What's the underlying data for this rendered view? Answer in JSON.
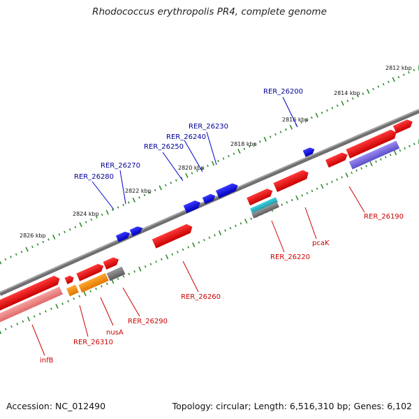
{
  "title": "Rhodococcus erythropolis PR4, complete genome",
  "accession": "Accession: NC_012490",
  "topology": "Topology: circular; Length: 6,516,310 bp; Genes: 6,102",
  "colors": {
    "backbone": "#7f7f7f",
    "ticks": "#2e8b2e",
    "gene_red": "#ee0000",
    "gene_blue": "#0000ee",
    "label_blue": "#000099",
    "label_red": "#cc0000",
    "orange": "#ff8c00",
    "gray": "#666666",
    "teal": "#20b2c0",
    "pink": "#ef8080",
    "purple": "#7b68ee"
  },
  "scale_labels": [
    {
      "text": "2812 kbp"
    },
    {
      "text": "2814 kbp"
    },
    {
      "text": "2816 kbp"
    },
    {
      "text": "2818 kbp"
    },
    {
      "text": "2820 kbp"
    },
    {
      "text": "2822 kbp"
    },
    {
      "text": "2824 kbp"
    },
    {
      "text": "2826 kbp"
    }
  ],
  "upper_genes": [
    {
      "label": "RER_26200"
    },
    {
      "label": "RER_26230"
    },
    {
      "label": "RER_26240"
    },
    {
      "label": "RER_26250"
    },
    {
      "label": "RER_26270"
    },
    {
      "label": "RER_26280"
    }
  ],
  "lower_genes": [
    {
      "label": "RER_26190"
    },
    {
      "label": "pcaK"
    },
    {
      "label": "RER_26220"
    },
    {
      "label": "RER_26260"
    },
    {
      "label": "RER_26290"
    },
    {
      "label": "nusA"
    },
    {
      "label": "RER_26310"
    },
    {
      "label": "infB"
    }
  ]
}
